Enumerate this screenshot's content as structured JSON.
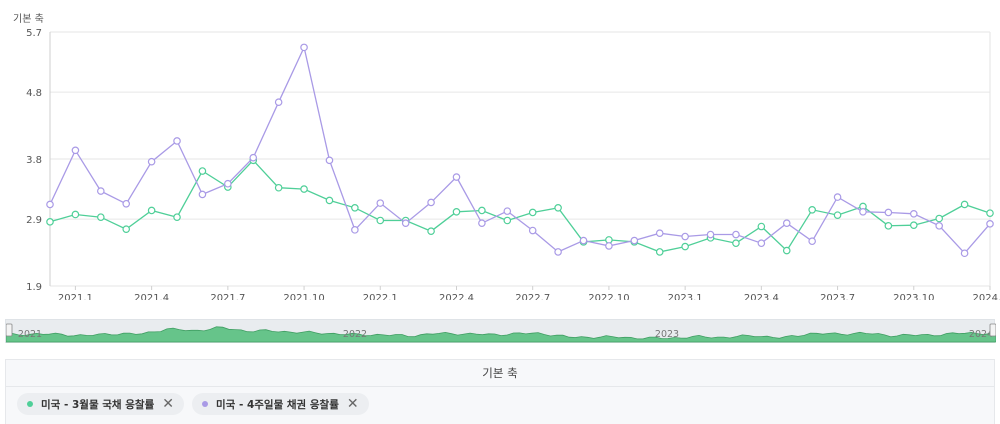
{
  "chart_data": {
    "type": "line",
    "axis_title": "기본 축",
    "ylim": [
      1.9,
      5.7
    ],
    "y_ticks": [
      1.9,
      2.9,
      3.8,
      4.8,
      5.7
    ],
    "x_tick_labels": [
      "2021.1",
      "2021.4",
      "2021.7",
      "2021.10",
      "2022.1",
      "2022.4",
      "2022.7",
      "2022.10",
      "2023.1",
      "2023.4",
      "2023.7",
      "2023.10",
      "2024.1"
    ],
    "x": [
      "2020.12",
      "2021.1",
      "2021.2",
      "2021.3",
      "2021.4",
      "2021.5",
      "2021.6",
      "2021.7",
      "2021.8",
      "2021.9",
      "2021.10",
      "2021.11",
      "2021.12",
      "2022.1",
      "2022.2",
      "2022.3",
      "2022.4",
      "2022.5",
      "2022.6",
      "2022.7",
      "2022.8",
      "2022.9",
      "2022.10",
      "2022.11",
      "2022.12",
      "2023.1",
      "2023.2",
      "2023.3",
      "2023.4",
      "2023.5",
      "2023.6",
      "2023.7",
      "2023.8",
      "2023.9",
      "2023.10",
      "2023.11",
      "2023.12",
      "2024.1"
    ],
    "series": [
      {
        "name": "미국 - 3월물 국채 응찰률",
        "color": "#4fcf98",
        "values": [
          2.86,
          2.97,
          2.93,
          2.75,
          3.03,
          2.93,
          3.62,
          3.38,
          3.78,
          3.37,
          3.35,
          3.18,
          3.07,
          2.88,
          2.88,
          2.72,
          3.01,
          3.03,
          2.88,
          3.0,
          3.07,
          2.56,
          2.59,
          2.56,
          2.41,
          2.49,
          2.62,
          2.54,
          2.79,
          2.43,
          3.04,
          2.96,
          3.09,
          2.8,
          2.81,
          2.91,
          3.12,
          2.99
        ]
      },
      {
        "name": "미국 - 4주일물 채권 응찰률",
        "color": "#a99ae6",
        "values": [
          3.12,
          3.93,
          3.32,
          3.13,
          3.76,
          4.07,
          3.27,
          3.43,
          3.82,
          4.65,
          5.47,
          3.78,
          2.74,
          3.14,
          2.84,
          3.15,
          3.53,
          2.84,
          3.02,
          2.73,
          2.41,
          2.58,
          2.5,
          2.58,
          2.69,
          2.64,
          2.67,
          2.67,
          2.54,
          2.84,
          2.57,
          3.23,
          3.01,
          3.0,
          2.98,
          2.8,
          2.39,
          2.83
        ]
      }
    ],
    "grid": true
  },
  "navigator": {
    "labels": [
      "2021",
      "2022",
      "2023",
      "2024"
    ],
    "start_handle": "≡",
    "end_handle": "≡"
  },
  "legend": {
    "header": "기본 축",
    "items": [
      {
        "label": "미국 - 3월물 국채 응찰률",
        "color": "#4fcf98",
        "remove": "✕"
      },
      {
        "label": "미국 - 4주일물 채권 응찰률",
        "color": "#a99ae6",
        "remove": "✕"
      }
    ]
  }
}
